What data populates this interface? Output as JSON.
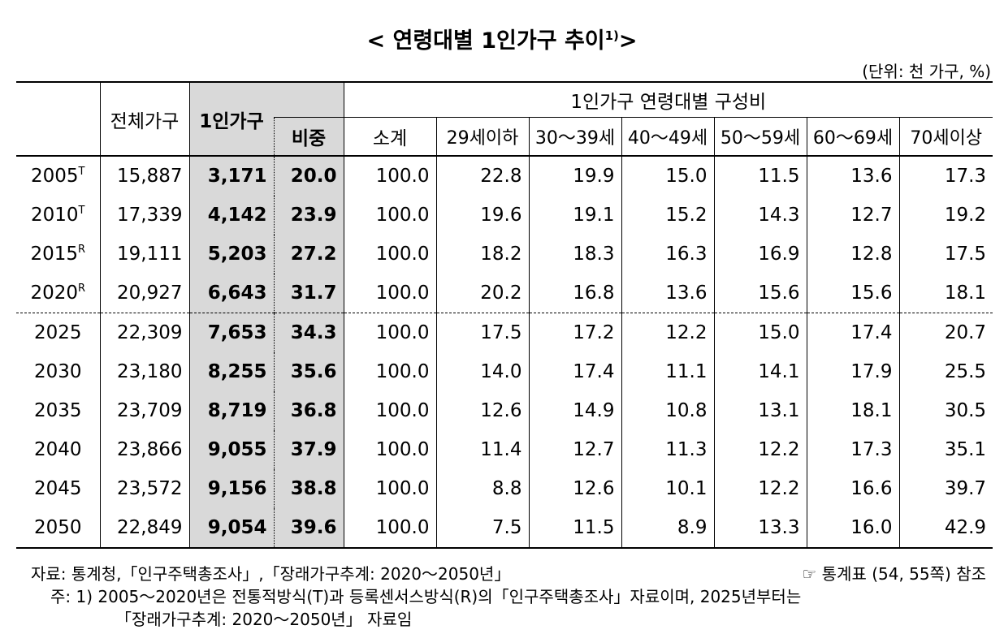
{
  "title": {
    "left": "< 연령대별 1인가구 추이",
    "sup": "1)",
    "right": ">"
  },
  "unit": "(단위: 천 가구, %)",
  "table": {
    "headers": {
      "total": "전체가구",
      "single": "1인가구",
      "ratio": "비중",
      "group": "1인가구 연령대별 구성비",
      "ages": [
        "소계",
        "29세이하",
        "30～39세",
        "40～49세",
        "50～59세",
        "60～69세",
        "70세이상"
      ]
    },
    "rows": [
      {
        "year": "2005",
        "mark": "T",
        "values": [
          "15,887",
          "3,171",
          "20.0",
          "100.0",
          "22.8",
          "19.9",
          "15.0",
          "11.5",
          "13.6",
          "17.3"
        ]
      },
      {
        "year": "2010",
        "mark": "T",
        "values": [
          "17,339",
          "4,142",
          "23.9",
          "100.0",
          "19.6",
          "19.1",
          "15.2",
          "14.3",
          "12.7",
          "19.2"
        ]
      },
      {
        "year": "2015",
        "mark": "R",
        "values": [
          "19,111",
          "5,203",
          "27.2",
          "100.0",
          "18.2",
          "18.3",
          "16.3",
          "16.9",
          "12.8",
          "17.5"
        ]
      },
      {
        "year": "2020",
        "mark": "R",
        "values": [
          "20,927",
          "6,643",
          "31.7",
          "100.0",
          "20.2",
          "16.8",
          "13.6",
          "15.6",
          "15.6",
          "18.1"
        ]
      },
      {
        "year": "2025",
        "values": [
          "22,309",
          "7,653",
          "34.3",
          "100.0",
          "17.5",
          "17.2",
          "12.2",
          "15.0",
          "17.4",
          "20.7"
        ]
      },
      {
        "year": "2030",
        "values": [
          "23,180",
          "8,255",
          "35.6",
          "100.0",
          "14.0",
          "17.4",
          "11.1",
          "14.1",
          "17.9",
          "25.5"
        ]
      },
      {
        "year": "2035",
        "values": [
          "23,709",
          "8,719",
          "36.8",
          "100.0",
          "12.6",
          "14.9",
          "10.8",
          "13.1",
          "18.1",
          "30.5"
        ]
      },
      {
        "year": "2040",
        "values": [
          "23,866",
          "9,055",
          "37.9",
          "100.0",
          "11.4",
          "12.7",
          "11.3",
          "12.2",
          "17.3",
          "35.1"
        ]
      },
      {
        "year": "2045",
        "values": [
          "23,572",
          "9,156",
          "38.8",
          "100.0",
          "8.8",
          "12.6",
          "10.1",
          "12.2",
          "16.6",
          "39.7"
        ]
      },
      {
        "year": "2050",
        "values": [
          "22,849",
          "9,054",
          "39.6",
          "100.0",
          "7.5",
          "11.5",
          "8.9",
          "13.3",
          "16.0",
          "42.9"
        ]
      }
    ]
  },
  "source": {
    "label": "자료:",
    "text": "통계청,「인구주택총조사」,「장래가구추계: 2020～2050년」",
    "ref": "☞ 통계표 (54, 55쪽) 참조"
  },
  "notes": {
    "label": "주:",
    "lines": [
      "1) 2005～2020년은 전통적방식(T)과 등록센서스방식(R)의「인구주택총조사」자료이며, 2025년부터는",
      "「장래가구추계: 2020～2050년」 자료임"
    ]
  }
}
